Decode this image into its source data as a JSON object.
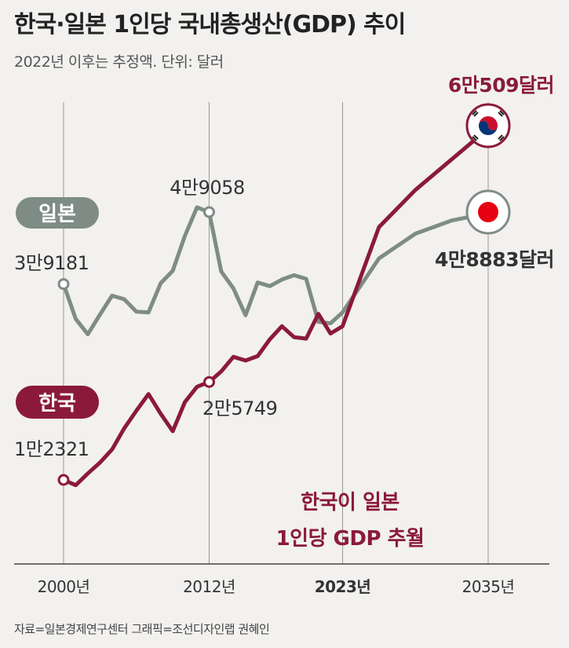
{
  "header": {
    "title": "한국·일본 1인당 국내총생산(GDP) 추이",
    "subtitle": "2022년 이후는 추정액. 단위: 달러"
  },
  "footer": {
    "credits": "자료=일본경제연구센터    그래픽=조선디자인랩 권혜인"
  },
  "colors": {
    "korea": "#8b1a3a",
    "japan": "#7f8c86",
    "background": "#f2f1ef"
  },
  "chart_data": {
    "type": "line",
    "title": "한국·일본 1인당 국내총생산(GDP) 추이",
    "subtitle": "2022년 이후는 추정액. 단위: 달러",
    "x": [
      2000,
      2001,
      2002,
      2003,
      2004,
      2005,
      2006,
      2007,
      2008,
      2009,
      2010,
      2011,
      2012,
      2013,
      2014,
      2015,
      2016,
      2017,
      2018,
      2019,
      2020,
      2021,
      2022,
      2023,
      2026,
      2029,
      2032,
      2035
    ],
    "ylim": [
      5000,
      70000
    ],
    "xticks": [
      {
        "value": 2000,
        "label": "2000년",
        "bold": false
      },
      {
        "value": 2012,
        "label": "2012년",
        "bold": false
      },
      {
        "value": 2023,
        "label": "2023년",
        "bold": true
      },
      {
        "value": 2035,
        "label": "2035년",
        "bold": false
      }
    ],
    "series": [
      {
        "name": "일본",
        "color": "#7f8c86",
        "values": [
          39181,
          34400,
          32300,
          35000,
          37600,
          37100,
          35400,
          35300,
          39300,
          41000,
          45800,
          49700,
          49058,
          40900,
          38600,
          34900,
          39400,
          38900,
          39800,
          40400,
          39900,
          34000,
          33800,
          35300,
          42700,
          46100,
          47900,
          48883
        ],
        "start_label": "3만9181",
        "peak_label": "4만9058",
        "end_label": "4만8883달러",
        "tag": "일본"
      },
      {
        "name": "한국",
        "color": "#8b1a3a",
        "values": [
          12321,
          11600,
          13200,
          14700,
          16500,
          19400,
          21800,
          24100,
          21400,
          19000,
          23000,
          25100,
          25749,
          27200,
          29200,
          28700,
          29300,
          31600,
          33400,
          31900,
          31700,
          35100,
          32400,
          33400,
          47000,
          52100,
          56300,
          60509
        ],
        "start_label": "1만2321",
        "mid_label": "2만5749",
        "end_label": "6만509달러",
        "tag": "한국"
      }
    ],
    "annotation": [
      "한국이 일본",
      "1인당 GDP 추월"
    ]
  }
}
